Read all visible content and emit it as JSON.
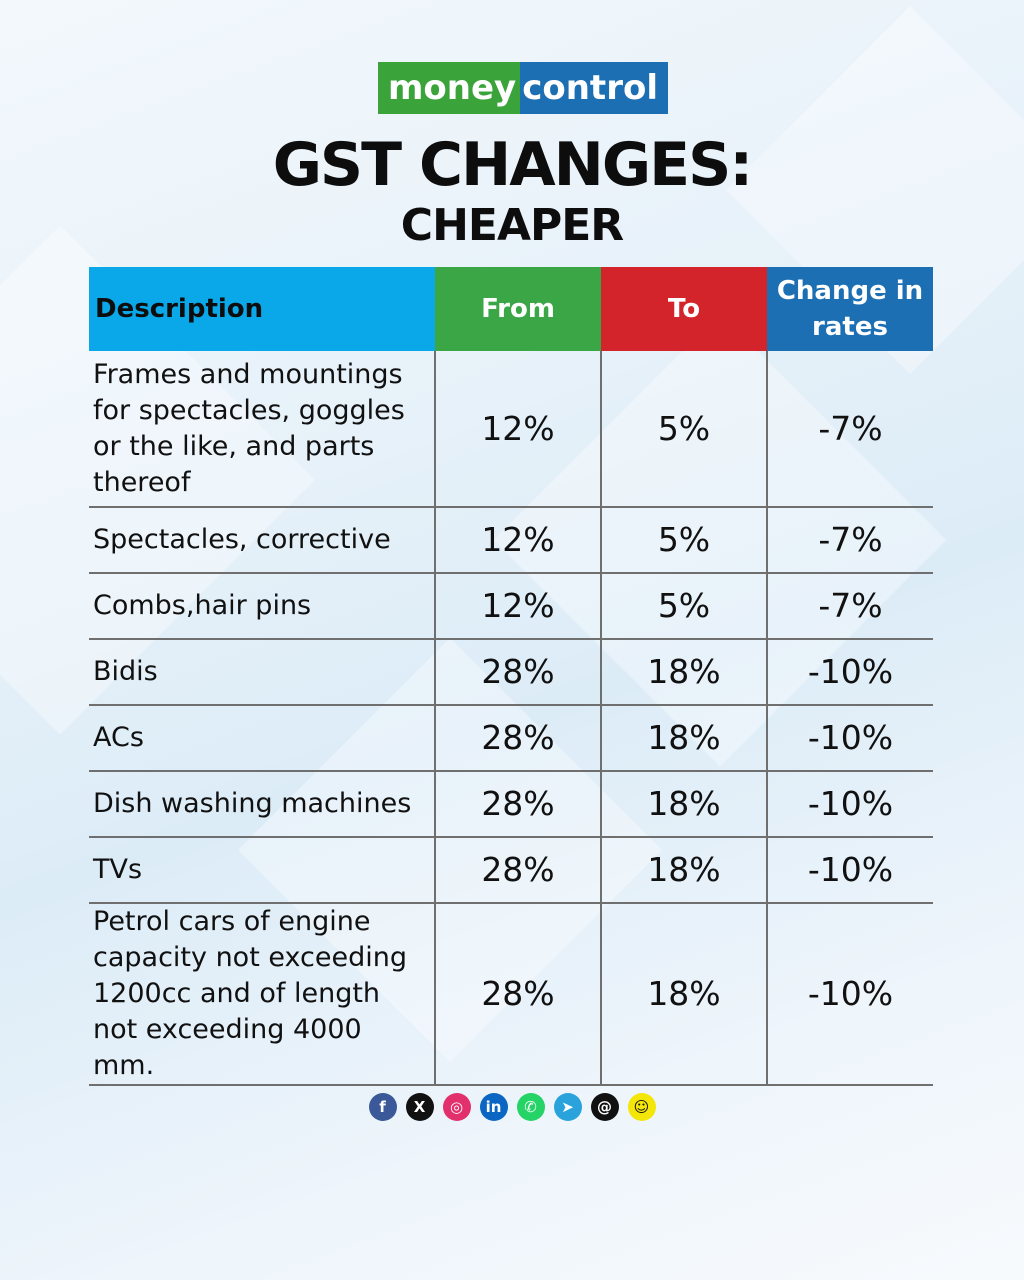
{
  "brand": {
    "part1": "money",
    "part2": "control"
  },
  "title": "GST CHANGES:",
  "subtitle": "CHEAPER",
  "table": {
    "headers": [
      "Description",
      "From",
      "To",
      "Change in rates"
    ],
    "rows": [
      {
        "description": "Frames and mountings for spectacles, goggles or the like, and parts thereof",
        "from": "12%",
        "to": "5%",
        "change": "-7%"
      },
      {
        "description": "Spectacles, corrective",
        "from": "12%",
        "to": "5%",
        "change": "-7%"
      },
      {
        "description": "Combs,hair pins",
        "from": "12%",
        "to": "5%",
        "change": "-7%"
      },
      {
        "description": "Bidis",
        "from": "28%",
        "to": "18%",
        "change": "-10%"
      },
      {
        "description": "ACs",
        "from": "28%",
        "to": "18%",
        "change": "-10%"
      },
      {
        "description": "Dish washing machines",
        "from": "28%",
        "to": "18%",
        "change": "-10%"
      },
      {
        "description": "TVs",
        "from": "28%",
        "to": "18%",
        "change": "-10%"
      },
      {
        "description": "Petrol cars of engine capacity not exceeding 1200cc and of length not exceeding 4000 mm.",
        "from": "28%",
        "to": "18%",
        "change": "-10%"
      }
    ]
  },
  "colors": {
    "description_header": "#0aa8e8",
    "from_header": "#3aa646",
    "to_header": "#d3232b",
    "change_header": "#1d6fb3",
    "brand_green": "#3aa43a",
    "brand_blue": "#1d6fb3"
  },
  "social_icons": [
    {
      "icon": "facebook-icon",
      "glyph": "f",
      "color": "#3b5998"
    },
    {
      "icon": "x-icon",
      "glyph": "X",
      "color": "#111111"
    },
    {
      "icon": "instagram-icon",
      "glyph": "◎",
      "color": "#e1306c"
    },
    {
      "icon": "linkedin-icon",
      "glyph": "in",
      "color": "#0a66c2"
    },
    {
      "icon": "whatsapp-icon",
      "glyph": "✆",
      "color": "#25d366"
    },
    {
      "icon": "telegram-icon",
      "glyph": "➤",
      "color": "#2aa3dc"
    },
    {
      "icon": "threads-icon",
      "glyph": "@",
      "color": "#111111"
    },
    {
      "icon": "snapchat-icon",
      "glyph": "☺",
      "color": "#f5e60a"
    }
  ]
}
